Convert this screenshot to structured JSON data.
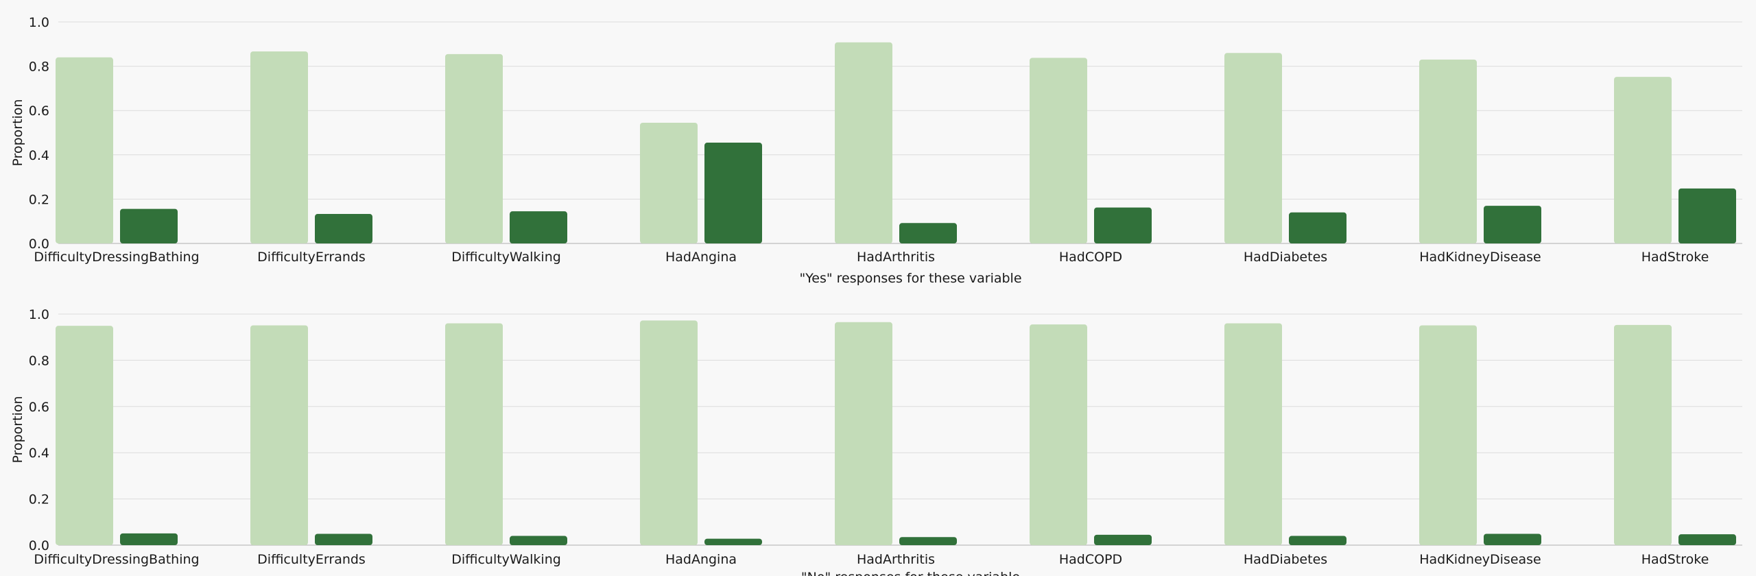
{
  "colors": {
    "light": "#c3dcb8",
    "dark": "#31713a",
    "background": "#f8f8f8"
  },
  "chart_data": [
    {
      "type": "bar",
      "categories": [
        "DifficultyDressingBathing",
        "DifficultyErrands",
        "DifficultyWalking",
        "HadAngina",
        "HadArthritis",
        "HadCOPD",
        "HadDiabetes",
        "HadKidneyDisease",
        "HadStroke"
      ],
      "series": [
        {
          "values": [
            0.84,
            0.867,
            0.855,
            0.545,
            0.908,
            0.838,
            0.86,
            0.83,
            0.752
          ]
        },
        {
          "values": [
            0.156,
            0.133,
            0.145,
            0.455,
            0.092,
            0.162,
            0.14,
            0.17,
            0.248
          ]
        }
      ],
      "xlabel": "\"Yes\" responses for these variable",
      "ylabel": "Proportion",
      "ylim": [
        0,
        1.0
      ],
      "yticks": [
        "0.0",
        "0.2",
        "0.4",
        "0.6",
        "0.8",
        "1.0"
      ],
      "grid": "horizontal"
    },
    {
      "type": "bar",
      "categories": [
        "DifficultyDressingBathing",
        "DifficultyErrands",
        "DifficultyWalking",
        "HadAngina",
        "HadArthritis",
        "HadCOPD",
        "HadDiabetes",
        "HadKidneyDisease",
        "HadStroke"
      ],
      "series": [
        {
          "values": [
            0.949,
            0.951,
            0.96,
            0.972,
            0.965,
            0.955,
            0.96,
            0.951,
            0.953
          ]
        },
        {
          "values": [
            0.051,
            0.049,
            0.04,
            0.028,
            0.035,
            0.045,
            0.04,
            0.049,
            0.047
          ]
        }
      ],
      "xlabel": "\"No\" responses for these variable",
      "ylabel": "Proportion",
      "ylim": [
        0,
        1.0
      ],
      "yticks": [
        "0.0",
        "0.2",
        "0.4",
        "0.6",
        "0.8",
        "1.0"
      ],
      "grid": "horizontal"
    }
  ]
}
